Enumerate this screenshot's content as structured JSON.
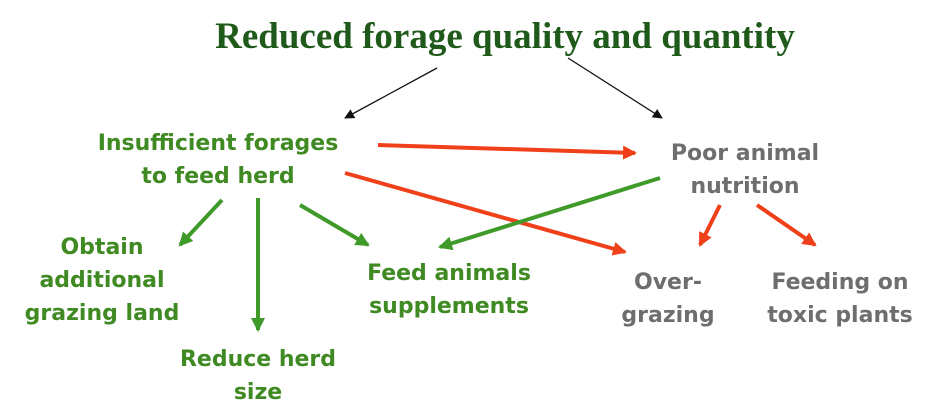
{
  "title": "Reduced forage quality and quantity",
  "nodes": [
    {
      "lines": [
        "Insufficient forages",
        "to feed herd"
      ]
    },
    {
      "lines": [
        "Poor animal",
        "nutrition"
      ]
    },
    {
      "lines": [
        "Obtain",
        "additional",
        "grazing land"
      ]
    },
    {
      "lines": [
        "Reduce herd",
        "size"
      ]
    },
    {
      "lines": [
        "Feed animals",
        "supplements"
      ]
    },
    {
      "lines": [
        "Over-",
        "grazing"
      ]
    },
    {
      "lines": [
        "Feeding on",
        "toxic plants"
      ]
    }
  ]
}
